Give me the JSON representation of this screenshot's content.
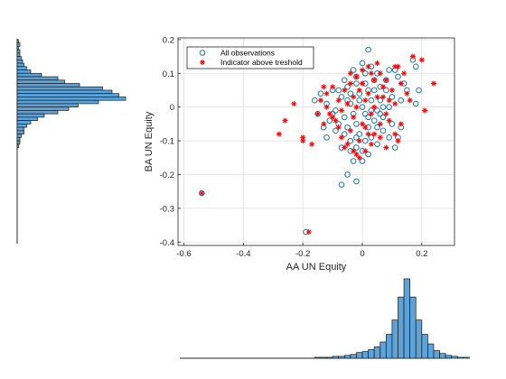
{
  "chart_data": [
    {
      "type": "scatter",
      "xlabel": "AA UN Equity",
      "ylabel": "BA UN Equity",
      "xlim": [
        -0.62,
        0.31
      ],
      "ylim": [
        -0.41,
        0.205
      ],
      "xticks": [
        -0.6,
        -0.4,
        -0.2,
        0,
        0.2
      ],
      "xtick_labels": [
        "-0.6",
        "-0.4",
        "-0.2",
        "0",
        "0.2"
      ],
      "yticks": [
        -0.4,
        -0.3,
        -0.2,
        -0.1,
        0,
        0.1,
        0.2
      ],
      "ytick_labels": [
        "-0.4",
        "-0.3",
        "-0.2",
        "-0.1",
        "0",
        "0.1",
        "0.2"
      ],
      "grid": true,
      "legend_position": "top-left",
      "colors": {
        "observations": "#1f77b4",
        "indicator": "#ff0000"
      },
      "series": [
        {
          "name": "All observations",
          "marker": "circle-open",
          "points": [
            [
              -0.19,
              -0.37
            ],
            [
              -0.54,
              -0.255
            ],
            [
              -0.07,
              -0.23
            ],
            [
              -0.05,
              -0.2
            ],
            [
              -0.02,
              -0.22
            ],
            [
              0.02,
              0.17
            ],
            [
              0.11,
              0.11
            ],
            [
              0.09,
              0.11
            ],
            [
              0.17,
              0.14
            ],
            [
              0.18,
              0.12
            ],
            [
              0.15,
              0.05
            ],
            [
              0.18,
              0.01
            ],
            [
              0.13,
              0.02
            ],
            [
              -0.12,
              0.01
            ],
            [
              -0.1,
              -0.02
            ],
            [
              -0.08,
              -0.05
            ],
            [
              -0.06,
              -0.08
            ],
            [
              -0.04,
              -0.1
            ],
            [
              -0.02,
              -0.12
            ],
            [
              0.0,
              -0.13
            ],
            [
              0.03,
              -0.09
            ],
            [
              0.05,
              -0.06
            ],
            [
              0.07,
              -0.03
            ],
            [
              0.09,
              0.0
            ],
            [
              0.1,
              0.03
            ],
            [
              0.06,
              0.06
            ],
            [
              0.04,
              0.08
            ],
            [
              0.01,
              0.1
            ],
            [
              -0.02,
              0.09
            ],
            [
              -0.05,
              0.06
            ],
            [
              -0.07,
              0.03
            ],
            [
              -0.09,
              -0.01
            ],
            [
              -0.11,
              -0.04
            ],
            [
              -0.13,
              -0.06
            ],
            [
              -0.15,
              -0.02
            ],
            [
              -0.16,
              0.02
            ],
            [
              -0.14,
              0.04
            ],
            [
              -0.03,
              -0.16
            ],
            [
              0.0,
              -0.16
            ],
            [
              0.02,
              -0.14
            ],
            [
              0.12,
              -0.09
            ],
            [
              0.13,
              -0.06
            ],
            [
              0.11,
              -0.12
            ],
            [
              -0.01,
              0.04
            ],
            [
              0.01,
              -0.02
            ],
            [
              0.03,
              0.02
            ],
            [
              -0.04,
              0.01
            ],
            [
              0.05,
              -0.01
            ],
            [
              -0.06,
              -0.03
            ],
            [
              0.08,
              0.05
            ],
            [
              0.02,
              0.05
            ],
            [
              -0.02,
              -0.05
            ],
            [
              0.04,
              -0.04
            ],
            [
              -0.05,
              0.02
            ],
            [
              0.07,
              -0.07
            ],
            [
              -0.08,
              0.05
            ],
            [
              0.1,
              -0.05
            ],
            [
              -0.1,
              0.05
            ],
            [
              0.0,
              0.0
            ],
            [
              0.03,
              -0.01
            ],
            [
              -0.01,
              0.02
            ],
            [
              0.06,
              0.02
            ],
            [
              -0.03,
              -0.02
            ],
            [
              0.02,
              -0.06
            ],
            [
              -0.06,
              0.08
            ],
            [
              0.08,
              0.08
            ],
            [
              -0.09,
              -0.07
            ],
            [
              0.09,
              -0.09
            ],
            [
              -0.12,
              -0.09
            ],
            [
              0.14,
              0.07
            ],
            [
              0.19,
              0.05
            ],
            [
              0.12,
              0.09
            ],
            [
              -0.04,
              -0.13
            ],
            [
              0.05,
              -0.11
            ],
            [
              -0.07,
              -0.12
            ],
            [
              0.0,
              0.13
            ],
            [
              0.03,
              0.12
            ],
            [
              -0.03,
              0.11
            ],
            [
              0.05,
              0.1
            ],
            [
              -0.02,
              0.07
            ],
            [
              0.01,
              0.07
            ],
            [
              0.04,
              0.05
            ],
            [
              -0.04,
              0.04
            ],
            [
              0.06,
              -0.02
            ],
            [
              -0.01,
              -0.08
            ],
            [
              0.01,
              -0.1
            ],
            [
              -0.02,
              -0.09
            ],
            [
              0.02,
              -0.03
            ],
            [
              -0.05,
              -0.06
            ],
            [
              0.07,
              0.0
            ]
          ]
        },
        {
          "name": "Indicator above treshold",
          "marker": "asterisk",
          "points": [
            [
              -0.54,
              -0.255
            ],
            [
              -0.18,
              -0.37
            ],
            [
              0.24,
              0.07
            ],
            [
              0.21,
              -0.01
            ],
            [
              0.2,
              0.14
            ],
            [
              0.17,
              0.15
            ],
            [
              0.12,
              0.12
            ],
            [
              -0.23,
              0.01
            ],
            [
              -0.26,
              -0.04
            ],
            [
              -0.28,
              -0.08
            ],
            [
              -0.2,
              -0.09
            ],
            [
              -0.2,
              -0.1
            ],
            [
              -0.17,
              -0.11
            ],
            [
              -0.13,
              -0.05
            ],
            [
              -0.14,
              0.02
            ],
            [
              -0.15,
              -0.02
            ],
            [
              -0.12,
              0.0
            ],
            [
              -0.1,
              -0.03
            ],
            [
              -0.08,
              -0.06
            ],
            [
              -0.07,
              -0.09
            ],
            [
              -0.05,
              -0.11
            ],
            [
              -0.03,
              -0.13
            ],
            [
              -0.01,
              -0.15
            ],
            [
              0.01,
              -0.13
            ],
            [
              0.03,
              -0.11
            ],
            [
              0.04,
              -0.08
            ],
            [
              0.06,
              -0.05
            ],
            [
              0.08,
              -0.02
            ],
            [
              0.09,
              0.02
            ],
            [
              0.1,
              0.05
            ],
            [
              0.08,
              0.08
            ],
            [
              0.06,
              0.1
            ],
            [
              0.03,
              0.1
            ],
            [
              0.0,
              0.11
            ],
            [
              -0.02,
              0.09
            ],
            [
              -0.04,
              0.07
            ],
            [
              -0.06,
              0.05
            ],
            [
              -0.08,
              0.02
            ],
            [
              -0.1,
              0.06
            ],
            [
              -0.12,
              0.04
            ],
            [
              0.11,
              -0.08
            ],
            [
              0.12,
              -0.1
            ],
            [
              0.13,
              -0.05
            ],
            [
              0.15,
              0.04
            ],
            [
              0.16,
              0.02
            ],
            [
              0.14,
              0.1
            ],
            [
              0.11,
              0.12
            ],
            [
              0.05,
              0.13
            ],
            [
              0.02,
              0.12
            ],
            [
              -0.01,
              0.05
            ],
            [
              0.01,
              0.02
            ],
            [
              -0.02,
              0.0
            ],
            [
              0.03,
              -0.02
            ],
            [
              0.0,
              -0.05
            ],
            [
              -0.03,
              -0.03
            ],
            [
              0.05,
              0.03
            ],
            [
              -0.05,
              0.01
            ],
            [
              0.07,
              0.06
            ],
            [
              -0.04,
              0.1
            ],
            [
              0.04,
              0.08
            ],
            [
              0.02,
              -0.08
            ],
            [
              -0.01,
              -0.1
            ],
            [
              -0.06,
              -0.12
            ],
            [
              0.06,
              -0.09
            ],
            [
              -0.09,
              -0.04
            ],
            [
              0.09,
              -0.04
            ],
            [
              -0.11,
              -0.02
            ],
            [
              0.11,
              0.01
            ],
            [
              -0.13,
              0.06
            ],
            [
              0.13,
              0.07
            ],
            [
              -0.07,
              -0.01
            ],
            [
              0.07,
              0.03
            ],
            [
              0.0,
              0.07
            ],
            [
              0.02,
              0.04
            ],
            [
              -0.03,
              0.03
            ],
            [
              0.04,
              0.0
            ],
            [
              -0.04,
              -0.07
            ],
            [
              0.01,
              -0.06
            ],
            [
              0.08,
              -0.12
            ],
            [
              -0.02,
              -0.14
            ]
          ]
        }
      ]
    },
    {
      "type": "bar",
      "orientation": "vertical",
      "variable": "AA UN Equity",
      "bin_start": -0.6,
      "bin_width": 0.02,
      "values": [
        0,
        0,
        0,
        0,
        0,
        0,
        0,
        0,
        0,
        0,
        0,
        0,
        0,
        0,
        0,
        0,
        0,
        0,
        0,
        0,
        0,
        0,
        1,
        1,
        1,
        2,
        2,
        3,
        4,
        6,
        7,
        9,
        12,
        17,
        25,
        40,
        64,
        83,
        64,
        40,
        25,
        15,
        8,
        5,
        3,
        2,
        1,
        1,
        0,
        0
      ]
    },
    {
      "type": "bar",
      "orientation": "horizontal",
      "variable": "BA UN Equity",
      "bin_start": 0.2,
      "bin_width": -0.01,
      "values": [
        1,
        2,
        1,
        2,
        2,
        3,
        4,
        5,
        7,
        10,
        18,
        30,
        35,
        46,
        63,
        70,
        75,
        80,
        60,
        45,
        38,
        30,
        20,
        15,
        10,
        7,
        5,
        5,
        3,
        2,
        2,
        1,
        0,
        0,
        0,
        0,
        0,
        0,
        0,
        0,
        0,
        0,
        0,
        0,
        0,
        0,
        0,
        0,
        0,
        0,
        0,
        0,
        0,
        0,
        0,
        0,
        0,
        0,
        0,
        0,
        0
      ]
    }
  ],
  "legend": {
    "items": [
      {
        "label": "All observations"
      },
      {
        "label": "Indicator above treshold"
      }
    ]
  },
  "axes": {
    "x_label": "AA UN Equity",
    "y_label": "BA UN Equity"
  }
}
